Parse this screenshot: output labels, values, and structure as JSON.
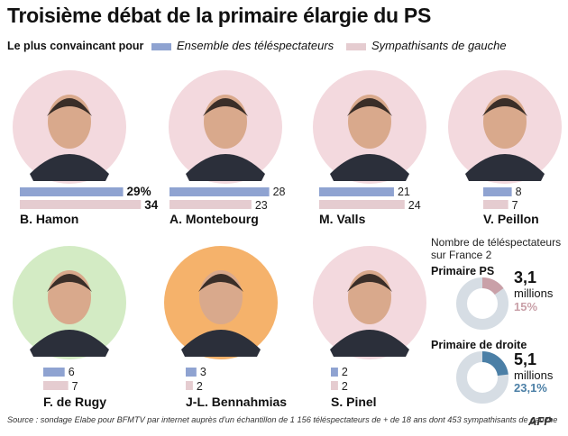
{
  "title": "Troisième débat de la primaire élargie du PS",
  "subtitle": "Le plus convaincant pour",
  "legend": [
    {
      "label": "Ensemble des téléspectateurs",
      "color": "#8fa3d1"
    },
    {
      "label": "Sympathisants de gauche",
      "color": "#e5ccd0"
    }
  ],
  "chart_data": {
    "type": "bar",
    "categories": [
      "B. Hamon",
      "A. Montebourg",
      "M. Valls",
      "V. Peillon",
      "F. de Rugy",
      "J-L. Bennahmias",
      "S. Pinel"
    ],
    "series": [
      {
        "name": "Ensemble des téléspectateurs",
        "values": [
          29,
          28,
          21,
          8,
          6,
          3,
          2
        ]
      },
      {
        "name": "Sympathisants de gauche",
        "values": [
          34,
          23,
          24,
          7,
          7,
          2,
          2
        ]
      }
    ],
    "value_labels": {
      "first": [
        "29%",
        "28",
        "21",
        "8",
        "6",
        "3",
        "2"
      ],
      "second": [
        "34",
        "23",
        "24",
        "7",
        "7",
        "2",
        "2"
      ]
    },
    "bold_labels_for": "B. Hamon"
  },
  "portrait_colors": [
    "#f3d9de",
    "#f3d9de",
    "#f3d9de",
    "#f3d9de",
    "#d3ebc4",
    "#f5b26b",
    "#f3d9de"
  ],
  "audience": {
    "title_line1": "Nombre de téléspectateurs",
    "title_line2": "sur France 2",
    "items": [
      {
        "label": "Primaire PS",
        "value": "3,1",
        "unit": "millions",
        "share_label": "15%",
        "share": 0.15,
        "color": "#c9a0a8"
      },
      {
        "label": "Primaire de droite",
        "value": "5,1",
        "unit": "millions",
        "share_label": "23,1%",
        "share": 0.231,
        "color": "#4b7fa6"
      }
    ]
  },
  "source": "Source : sondage Elabe pour BFMTV par internet auprès d'un échantillon de 1 156 téléspectateurs de + de 18 ans  dont 453 sympathisants de gauche",
  "logo": "AFP"
}
